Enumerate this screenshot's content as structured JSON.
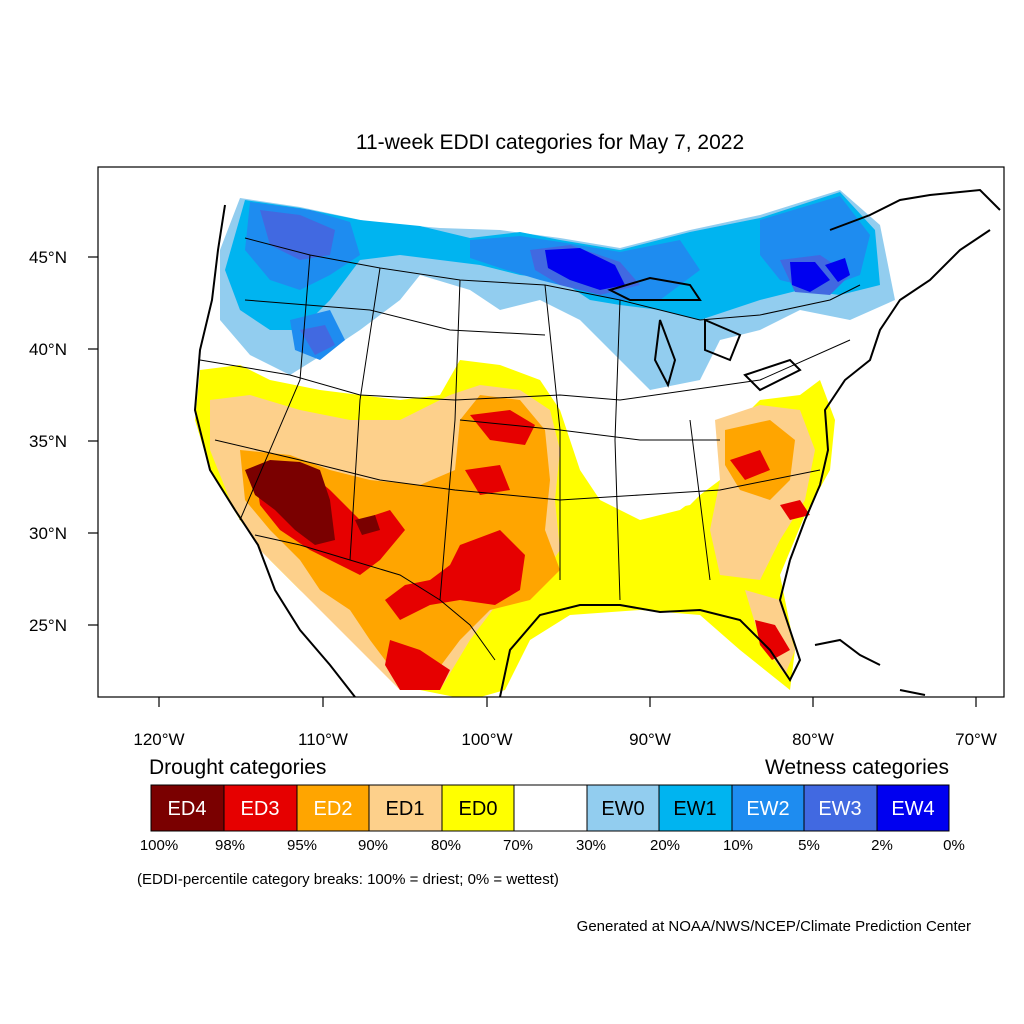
{
  "title": "11-week EDDI categories for May 7, 2022",
  "map": {
    "lat_labels": [
      "45°N",
      "40°N",
      "35°N",
      "30°N",
      "25°N"
    ],
    "lon_labels": [
      "120°W",
      "110°W",
      "100°W",
      "90°W",
      "80°W",
      "70°W"
    ]
  },
  "legend": {
    "drought_heading": "Drought categories",
    "wetness_heading": "Wetness categories",
    "categories": [
      {
        "label": "ED4",
        "color": "#7a0000",
        "text_color": "#ffffff"
      },
      {
        "label": "ED3",
        "color": "#e60000",
        "text_color": "#ffffff"
      },
      {
        "label": "ED2",
        "color": "#ffa500",
        "text_color": "#ffffff"
      },
      {
        "label": "ED1",
        "color": "#fdd08b",
        "text_color": "#000000"
      },
      {
        "label": "ED0",
        "color": "#ffff00",
        "text_color": "#000000"
      },
      {
        "label": "",
        "color": "#ffffff",
        "text_color": "#000000"
      },
      {
        "label": "EW0",
        "color": "#92cdef",
        "text_color": "#000000"
      },
      {
        "label": "EW1",
        "color": "#00b4f0",
        "text_color": "#000000"
      },
      {
        "label": "EW2",
        "color": "#1e8cf0",
        "text_color": "#ffffff"
      },
      {
        "label": "EW3",
        "color": "#4169e1",
        "text_color": "#ffffff"
      },
      {
        "label": "EW4",
        "color": "#0000f0",
        "text_color": "#ffffff"
      }
    ],
    "breaks": [
      "100%",
      "98%",
      "95%",
      "90%",
      "80%",
      "70%",
      "30%",
      "20%",
      "10%",
      "5%",
      "2%",
      "0%"
    ]
  },
  "note": "(EDDI-percentile category breaks: 100% = driest; 0% = wettest)",
  "credit": "Generated at NOAA/NWS/NCEP/Climate Prediction Center"
}
